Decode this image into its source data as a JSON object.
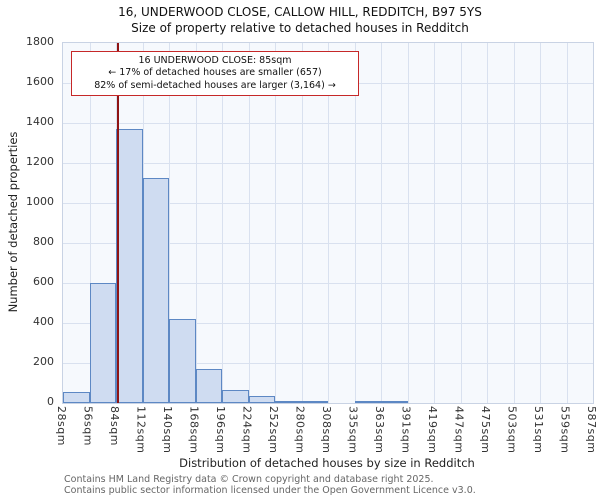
{
  "chart_data": {
    "type": "bar",
    "title": "16, UNDERWOOD CLOSE, CALLOW HILL, REDDITCH, B97 5YS",
    "subtitle": "Size of property relative to detached houses in Redditch",
    "xlabel": "Distribution of detached houses by size in Redditch",
    "ylabel": "Number of detached properties",
    "categories": [
      "28sqm",
      "56sqm",
      "84sqm",
      "112sqm",
      "140sqm",
      "168sqm",
      "196sqm",
      "224sqm",
      "252sqm",
      "280sqm",
      "308sqm",
      "335sqm",
      "363sqm",
      "391sqm",
      "419sqm",
      "447sqm",
      "475sqm",
      "503sqm",
      "531sqm",
      "559sqm",
      "587sqm"
    ],
    "values": [
      55,
      600,
      1370,
      1125,
      420,
      170,
      65,
      35,
      12,
      4,
      0,
      10,
      8,
      0,
      0,
      0,
      0,
      0,
      0,
      0
    ],
    "ylim": [
      0,
      1800
    ],
    "ytick_step": 200,
    "x_domain": [
      28,
      587
    ],
    "grid": true,
    "legend": "none",
    "bar_fill": "#cfdcf1",
    "bar_border": "#5d88c4",
    "marker": {
      "value": 85,
      "color": "#8f1414"
    },
    "annotation": {
      "line1": "16 UNDERWOOD CLOSE: 85sqm",
      "line2": "← 17% of detached houses are smaller (657)",
      "line3": "82% of semi-detached houses are larger (3,164) →"
    }
  },
  "footer": {
    "line1": "Contains HM Land Registry data © Crown copyright and database right 2025.",
    "line2": "Contains public sector information licensed under the Open Government Licence v3.0."
  }
}
